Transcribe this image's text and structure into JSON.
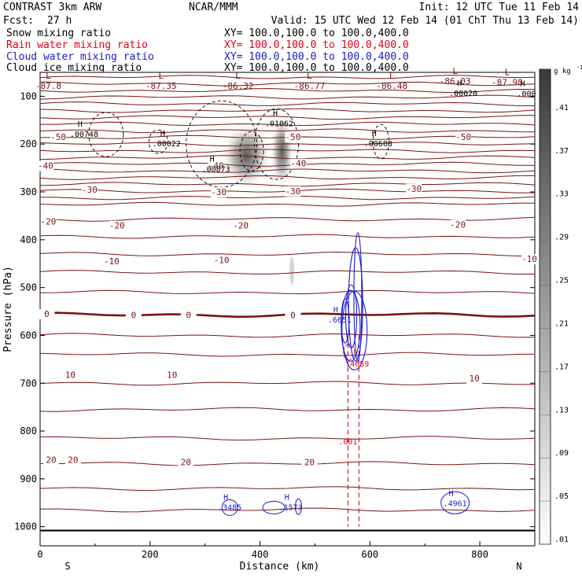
{
  "header": {
    "title": "CONTRAST  3km ARW",
    "center": "NCAR/MMM",
    "init": "Init: 12 UTC Tue 11 Feb 14",
    "fcst_label": "Fcst:",
    "fcst_value": "27 h",
    "valid": "Valid: 15 UTC Wed 12 Feb 14 (01 ChT Thu 13 Feb 14)"
  },
  "fields": [
    {
      "name": "Snow mixing ratio",
      "xy": "XY= 100.0,100.0 to 100.0,400.0",
      "color": "#000000"
    },
    {
      "name": "Rain water mixing ratio",
      "xy": "XY= 100.0,100.0 to 100.0,400.0",
      "color": "#e0001a"
    },
    {
      "name": "Cloud water mixing ratio",
      "xy": "XY= 100.0,100.0 to 100.0,400.0",
      "color": "#1a1acc"
    },
    {
      "name": "Cloud ice mixing ratio",
      "xy": "XY= 100.0,100.0 to 100.0,400.0",
      "color": "#000000"
    }
  ],
  "colorbar": {
    "unit": "g kg",
    "unit_exp": "-1",
    "labels": [
      ".41",
      ".37",
      ".33",
      ".29",
      ".25",
      ".21",
      ".17",
      ".13",
      ".09",
      ".05",
      ".01"
    ]
  },
  "chart_data": {
    "type": "contour",
    "xlabel": "Distance (km)",
    "ylabel": "Pressure (hPa)",
    "xlim": [
      0,
      900
    ],
    "ylim": [
      1040,
      50
    ],
    "xticks": [
      0,
      200,
      400,
      600,
      800
    ],
    "yticks": [
      100,
      200,
      300,
      400,
      500,
      600,
      700,
      800,
      900,
      1000
    ],
    "x_end_labels": {
      "left": "S",
      "right": "N"
    },
    "temperature_isotherm_labels": [
      {
        "value": "-50",
        "x": 33,
        "p": 185
      },
      {
        "value": "-50",
        "x": 460,
        "p": 185
      },
      {
        "value": "-50",
        "x": 770,
        "p": 185
      },
      {
        "value": "-40",
        "x": 10,
        "p": 245
      },
      {
        "value": "-40",
        "x": 320,
        "p": 245
      },
      {
        "value": "-40",
        "x": 470,
        "p": 240
      },
      {
        "value": "-30",
        "x": 90,
        "p": 295
      },
      {
        "value": "-30",
        "x": 325,
        "p": 300
      },
      {
        "value": "-30",
        "x": 460,
        "p": 298
      },
      {
        "value": "-30",
        "x": 680,
        "p": 293
      },
      {
        "value": "-20",
        "x": 15,
        "p": 362
      },
      {
        "value": "-20",
        "x": 140,
        "p": 370
      },
      {
        "value": "-20",
        "x": 365,
        "p": 370
      },
      {
        "value": "-20",
        "x": 760,
        "p": 368
      },
      {
        "value": "-10",
        "x": 130,
        "p": 445
      },
      {
        "value": "-10",
        "x": 330,
        "p": 442
      },
      {
        "value": "-10",
        "x": 890,
        "p": 440
      },
      {
        "value": "0",
        "x": 12,
        "p": 555
      },
      {
        "value": "0",
        "x": 170,
        "p": 557
      },
      {
        "value": "0",
        "x": 270,
        "p": 557
      },
      {
        "value": "0",
        "x": 460,
        "p": 557
      },
      {
        "value": "10",
        "x": 55,
        "p": 682
      },
      {
        "value": "10",
        "x": 240,
        "p": 682
      },
      {
        "value": "10",
        "x": 790,
        "p": 690
      },
      {
        "value": "20",
        "x": 20,
        "p": 860
      },
      {
        "value": "20",
        "x": 60,
        "p": 860
      },
      {
        "value": "20",
        "x": 265,
        "p": 865
      },
      {
        "value": "20",
        "x": 490,
        "p": 865
      }
    ],
    "top_level_minima": [
      {
        "value": "-87.8",
        "x": 15,
        "p": 80
      },
      {
        "value": "-87.35",
        "x": 220,
        "p": 80
      },
      {
        "value": "-86.32",
        "x": 360,
        "p": 80
      },
      {
        "value": "-86.77",
        "x": 490,
        "p": 80
      },
      {
        "value": "-86.48",
        "x": 640,
        "p": 80
      },
      {
        "value": "-86.03",
        "x": 755,
        "p": 70
      },
      {
        "value": "-87.98",
        "x": 850,
        "p": 72
      }
    ],
    "maxima_labels": [
      {
        "value": ".00748",
        "x": 80,
        "p": 180,
        "color": "#000000"
      },
      {
        "value": ".00022",
        "x": 230,
        "p": 200,
        "color": "#000000"
      },
      {
        "value": ".00873",
        "x": 320,
        "p": 253,
        "color": "#000000"
      },
      {
        "value": ".01062",
        "x": 435,
        "p": 158,
        "color": "#000000"
      },
      {
        "value": ".00608",
        "x": 615,
        "p": 200,
        "color": "#000000"
      },
      {
        "value": ".00020",
        "x": 770,
        "p": 94,
        "color": "#000000"
      },
      {
        "value": ".000",
        "x": 885,
        "p": 95,
        "color": "#000000"
      },
      {
        "value": ".4659",
        "x": 577,
        "p": 660,
        "color": "#e0001a"
      },
      {
        "value": ".001",
        "x": 560,
        "p": 823,
        "color": "#e0001a"
      },
      {
        "value": ".6651",
        "x": 545,
        "p": 568,
        "color": "#1a1acc"
      },
      {
        "value": ".3485",
        "x": 345,
        "p": 960,
        "color": "#1a1acc"
      },
      {
        "value": ".1573",
        "x": 456,
        "p": 960,
        "color": "#1a1acc"
      },
      {
        "value": ".4961",
        "x": 755,
        "p": 952,
        "color": "#1a1acc"
      }
    ],
    "snow_maxima_km": [
      395,
      440
    ],
    "rain_columns_km": [
      560,
      580
    ],
    "freezing_level_hpa": 557
  }
}
